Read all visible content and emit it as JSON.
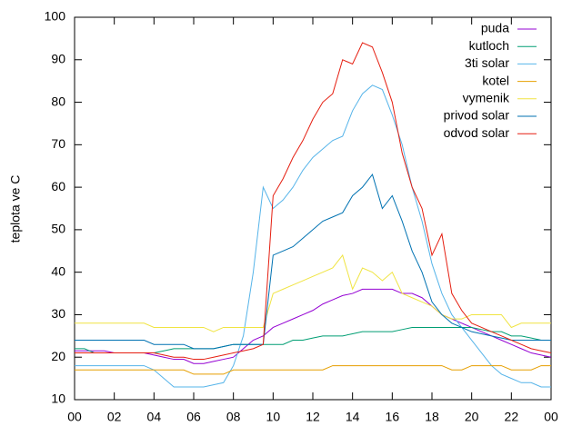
{
  "chart_data": {
    "type": "line",
    "ylabel": "teplota ve C",
    "x": [
      0,
      0.5,
      1,
      1.5,
      2,
      2.5,
      3,
      3.5,
      4,
      4.5,
      5,
      5.5,
      6,
      6.5,
      7,
      7.5,
      8,
      8.5,
      9,
      9.5,
      10,
      10.5,
      11,
      11.5,
      12,
      12.5,
      13,
      13.5,
      14,
      14.5,
      15,
      15.5,
      16,
      16.5,
      17,
      17.5,
      18,
      18.5,
      19,
      19.5,
      20,
      20.5,
      21,
      21.5,
      22,
      22.5,
      23,
      23.5,
      24
    ],
    "xlim": [
      0,
      24
    ],
    "xticks": [
      {
        "value": 0,
        "label": "00"
      },
      {
        "value": 2,
        "label": "02"
      },
      {
        "value": 4,
        "label": "04"
      },
      {
        "value": 6,
        "label": "06"
      },
      {
        "value": 8,
        "label": "08"
      },
      10,
      12,
      14,
      16,
      18,
      20,
      22,
      {
        "value": 24,
        "label": "00"
      }
    ],
    "ylim": [
      10,
      100
    ],
    "yticks": [
      10,
      20,
      30,
      40,
      50,
      60,
      70,
      80,
      90,
      100
    ],
    "legend": "top-right",
    "series": [
      {
        "name": "puda",
        "color": "#9400d3",
        "values": [
          21.5,
          21.5,
          21.5,
          21.5,
          21,
          21,
          21,
          21,
          20.5,
          20,
          19.5,
          19.5,
          18.5,
          18.5,
          19,
          19.5,
          20,
          22,
          24,
          25,
          27,
          28,
          29,
          30,
          31,
          32.5,
          33.5,
          34.5,
          35,
          36,
          36,
          36,
          36,
          35,
          35,
          34,
          32,
          30,
          29,
          28,
          27,
          26,
          25,
          24,
          23,
          22,
          21,
          20.5,
          20
        ]
      },
      {
        "name": "kutloch",
        "color": "#009e73",
        "values": [
          22,
          22,
          21,
          21,
          21,
          21,
          21,
          21,
          21,
          21.5,
          22,
          22,
          22,
          22,
          22,
          22.5,
          23,
          23,
          23,
          23,
          23,
          23,
          24,
          24,
          24.5,
          25,
          25,
          25,
          25.5,
          26,
          26,
          26,
          26,
          26.5,
          27,
          27,
          27,
          27,
          27,
          27,
          27,
          26.5,
          26,
          26,
          25,
          25,
          24.5,
          24,
          24
        ]
      },
      {
        "name": "3ti solar",
        "color": "#56b4e9",
        "values": [
          18,
          18,
          18,
          18,
          18,
          18,
          18,
          18,
          17,
          15,
          13,
          13,
          13,
          13,
          13.5,
          14,
          18,
          25,
          40,
          60,
          55,
          57,
          60,
          64,
          67,
          69,
          71,
          72,
          78,
          82,
          84,
          83,
          77,
          70,
          60,
          52,
          42,
          35,
          30,
          27,
          24,
          21,
          18,
          16,
          15,
          14,
          14,
          13,
          13
        ]
      },
      {
        "name": "kotel",
        "color": "#e69f00",
        "values": [
          17,
          17,
          17,
          17,
          17,
          17,
          17,
          17,
          17,
          17,
          17,
          17,
          16,
          16,
          16,
          16,
          17,
          17,
          17,
          17,
          17,
          17,
          17,
          17,
          17,
          17,
          18,
          18,
          18,
          18,
          18,
          18,
          18,
          18,
          18,
          18,
          18,
          18,
          17,
          17,
          18,
          18,
          18,
          18,
          17,
          17,
          17,
          18,
          18
        ]
      },
      {
        "name": "vymenik",
        "color": "#f0e442",
        "values": [
          28,
          28,
          28,
          28,
          28,
          28,
          28,
          28,
          27,
          27,
          27,
          27,
          27,
          27,
          26,
          27,
          27,
          27,
          27,
          27,
          35,
          36,
          37,
          38,
          39,
          40,
          41,
          44,
          36,
          41,
          40,
          38,
          40,
          35,
          34,
          33,
          32,
          30,
          29,
          29,
          30,
          30,
          30,
          30,
          27,
          28,
          28,
          28,
          28
        ]
      },
      {
        "name": "privod solar",
        "color": "#0072b2",
        "values": [
          24,
          24,
          24,
          24,
          24,
          24,
          24,
          24,
          23,
          23,
          23,
          23,
          22,
          22,
          22,
          22.5,
          23,
          23,
          23,
          23,
          44,
          45,
          46,
          48,
          50,
          52,
          53,
          54,
          58,
          60,
          63,
          55,
          58,
          52,
          45,
          40,
          33,
          30,
          28,
          27,
          26,
          25.5,
          25,
          24.5,
          24,
          24,
          24,
          24,
          24
        ]
      },
      {
        "name": "odvod solar",
        "color": "#e51e10",
        "values": [
          21,
          21,
          21,
          21,
          21,
          21,
          21,
          21,
          21,
          20.5,
          20,
          20,
          19.5,
          19.5,
          20,
          20.5,
          21,
          21.5,
          22,
          23,
          58,
          62,
          67,
          71,
          76,
          80,
          82,
          90,
          89,
          94,
          93,
          87,
          80,
          68,
          60,
          55,
          44,
          49,
          35,
          31,
          28,
          27,
          26,
          25,
          24,
          23,
          22,
          21.5,
          21
        ]
      }
    ]
  }
}
